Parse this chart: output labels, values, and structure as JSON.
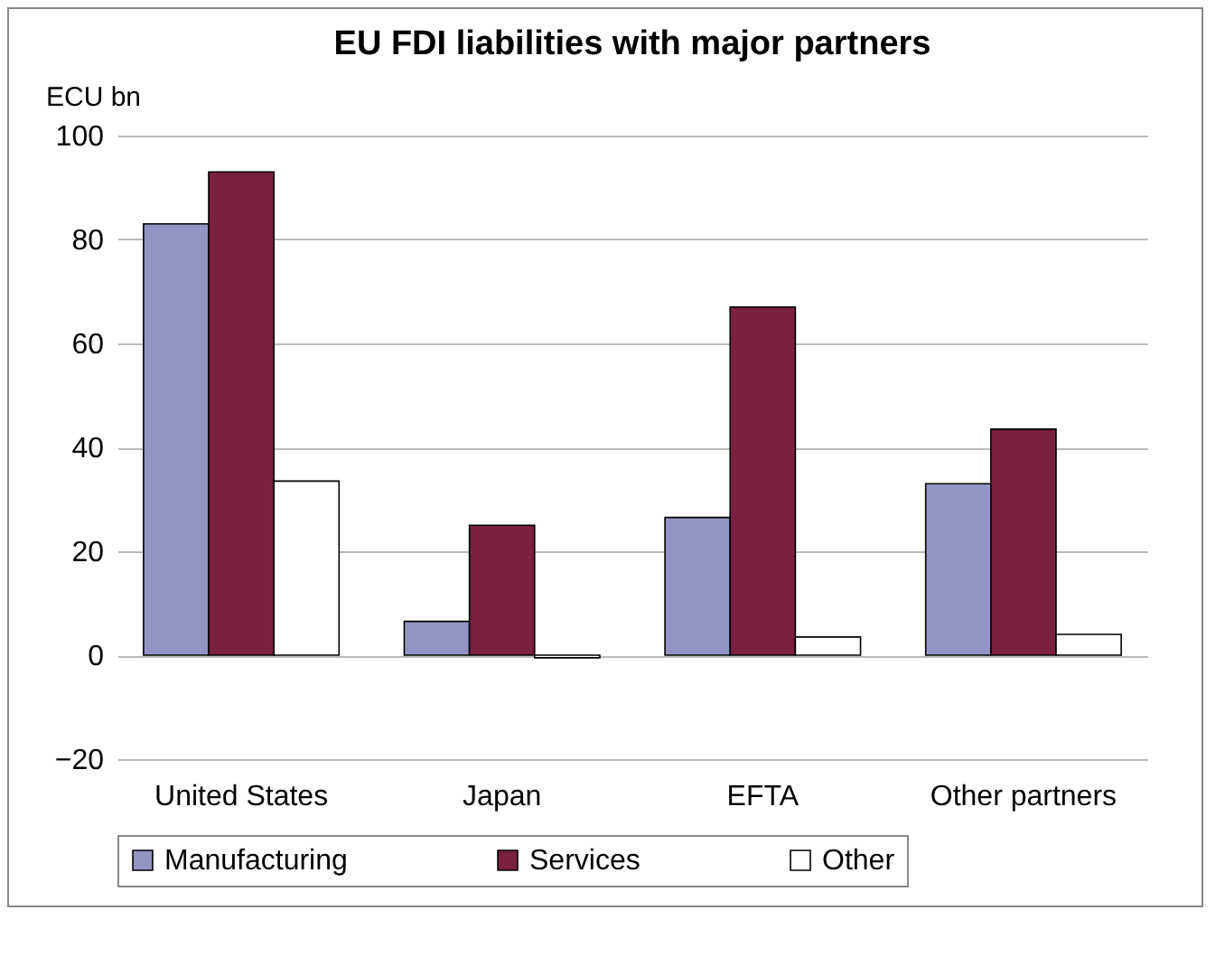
{
  "chart_data": {
    "type": "bar",
    "title": "EU FDI liabilities with major partners",
    "ylabel": "ECU bn",
    "categories": [
      "United States",
      "Japan",
      "EFTA",
      "Other partners"
    ],
    "series": [
      {
        "name": "Manufacturing",
        "color": "#9494c4",
        "values": [
          83,
          6.5,
          26.5,
          33
        ]
      },
      {
        "name": "Services",
        "color": "#7a2040",
        "values": [
          93,
          25,
          67,
          43.5
        ]
      },
      {
        "name": "Other",
        "color": "#ffffff",
        "values": [
          33.5,
          -0.5,
          3.5,
          4
        ]
      }
    ],
    "ylim": [
      -20,
      100
    ],
    "yticks": [
      -20,
      0,
      20,
      40,
      60,
      80,
      100
    ],
    "grid": "y",
    "legend": "bottom"
  }
}
